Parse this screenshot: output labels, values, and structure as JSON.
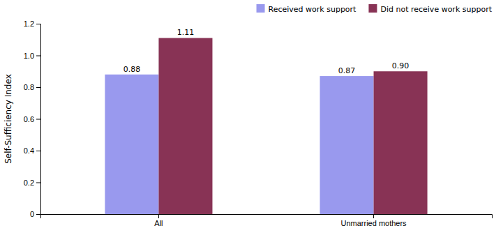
{
  "chart_data": {
    "type": "bar",
    "categories": [
      "All",
      "Unmarried mothers"
    ],
    "series": [
      {
        "name": "Received work support",
        "color": "#9999EE",
        "values": [
          0.88,
          0.87
        ],
        "value_labels": [
          "0.88",
          "0.87"
        ]
      },
      {
        "name": "Did not receive work support",
        "color": "#883355",
        "values": [
          1.11,
          0.9
        ],
        "value_labels": [
          "1.11",
          "0.90"
        ]
      }
    ],
    "ylabel": "Self-Sufficiency Index",
    "ylim": [
      0,
      1.2
    ],
    "yticks": [
      0,
      0.2,
      0.4,
      0.6,
      0.8,
      {
        "value": 1.0,
        "label": "1.0"
      },
      1.2
    ],
    "grid": false,
    "legend": "upper right",
    "data_labels": true
  }
}
